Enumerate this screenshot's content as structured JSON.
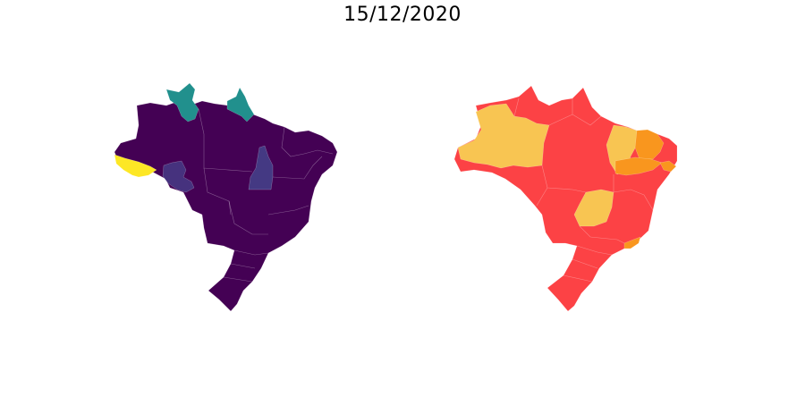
{
  "title": "15/12/2020",
  "maps": [
    {
      "colors": {
        "base": "#440154",
        "acre": "#fde725",
        "rondonia": "#46327e",
        "tocantins": "#443983",
        "roraima": "#21908d",
        "amapa": "#21908d"
      }
    },
    {
      "colors": {
        "base": "#fc4245",
        "amazonas": "#f8c552",
        "goias": "#f8c552",
        "piaui": "#f8c552",
        "ceara": "#f9961e",
        "rio_grande_do_norte": "#f9961e",
        "pernambuco": "#f9961e",
        "rio_de_janeiro": "#f9961e"
      }
    }
  ]
}
